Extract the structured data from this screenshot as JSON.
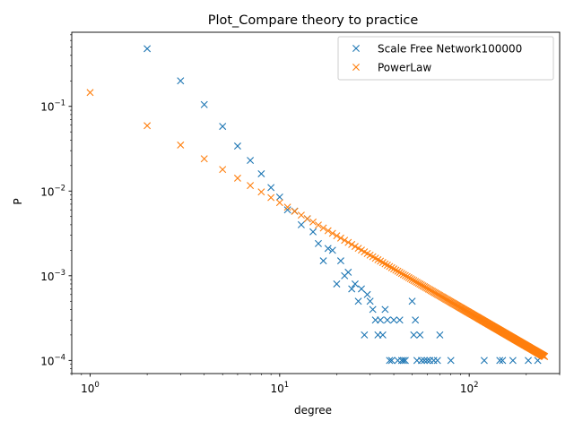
{
  "chart_data": {
    "type": "scatter",
    "title": "Plot_Compare theory to practice",
    "xlabel": "degree",
    "ylabel": "P",
    "xscale": "log",
    "yscale": "log",
    "xlim": [
      0.8,
      300
    ],
    "ylim": [
      7e-05,
      0.75
    ],
    "grid": false,
    "legend_position": "top-right",
    "x_tick_labels": [
      {
        "value": 1,
        "base": "10",
        "exp": "0"
      },
      {
        "value": 10,
        "base": "10",
        "exp": "1"
      },
      {
        "value": 100,
        "base": "10",
        "exp": "2"
      }
    ],
    "y_tick_labels": [
      {
        "value": 0.0001,
        "base": "10",
        "exp": "−4"
      },
      {
        "value": 0.001,
        "base": "10",
        "exp": "−3"
      },
      {
        "value": 0.01,
        "base": "10",
        "exp": "−2"
      },
      {
        "value": 0.1,
        "base": "10",
        "exp": "−1"
      }
    ],
    "series": [
      {
        "name": "Scale Free Network100000",
        "color": "#1f77b4",
        "marker": "x",
        "points": [
          [
            2,
            0.48
          ],
          [
            3,
            0.2
          ],
          [
            4,
            0.105
          ],
          [
            5,
            0.058
          ],
          [
            6,
            0.034
          ],
          [
            7,
            0.023
          ],
          [
            8,
            0.016
          ],
          [
            9,
            0.011
          ],
          [
            10,
            0.0085
          ],
          [
            11,
            0.006
          ],
          [
            12,
            0.0058
          ],
          [
            13,
            0.004
          ],
          [
            14,
            0.0047
          ],
          [
            15,
            0.0033
          ],
          [
            16,
            0.0024
          ],
          [
            17,
            0.0015
          ],
          [
            18,
            0.0021
          ],
          [
            19,
            0.002
          ],
          [
            20,
            0.0008
          ],
          [
            21,
            0.0015
          ],
          [
            22,
            0.001
          ],
          [
            23,
            0.0011
          ],
          [
            24,
            0.0007
          ],
          [
            25,
            0.0008
          ],
          [
            26,
            0.0005
          ],
          [
            27,
            0.0007
          ],
          [
            28,
            0.0002
          ],
          [
            29,
            0.0006
          ],
          [
            30,
            0.0005
          ],
          [
            31,
            0.0004
          ],
          [
            32,
            0.0003
          ],
          [
            33,
            0.0002
          ],
          [
            34,
            0.0003
          ],
          [
            35,
            0.0002
          ],
          [
            36,
            0.0004
          ],
          [
            37,
            0.0003
          ],
          [
            38,
            0.0001
          ],
          [
            39,
            0.0001
          ],
          [
            40,
            0.0003
          ],
          [
            42,
            0.0001
          ],
          [
            43,
            0.0003
          ],
          [
            44,
            0.0001
          ],
          [
            45,
            0.0001
          ],
          [
            46,
            0.0001
          ],
          [
            50,
            0.0005
          ],
          [
            51,
            0.0002
          ],
          [
            52,
            0.0003
          ],
          [
            53,
            0.0001
          ],
          [
            55,
            0.0002
          ],
          [
            56,
            0.0001
          ],
          [
            58,
            0.0001
          ],
          [
            60,
            0.0001
          ],
          [
            62,
            0.0001
          ],
          [
            65,
            0.0001
          ],
          [
            68,
            0.0001
          ],
          [
            70,
            0.0002
          ],
          [
            80,
            0.0001
          ],
          [
            120,
            0.0001
          ],
          [
            145,
            0.0001
          ],
          [
            150,
            0.0001
          ],
          [
            170,
            0.0001
          ],
          [
            205,
            0.0001
          ],
          [
            230,
            0.0001
          ]
        ]
      },
      {
        "name": "PowerLaw",
        "color": "#ff7f0e",
        "marker": "x",
        "formula": {
          "a": 0.1457,
          "b": -1.3,
          "from": 1,
          "to": 250
        }
      }
    ]
  }
}
